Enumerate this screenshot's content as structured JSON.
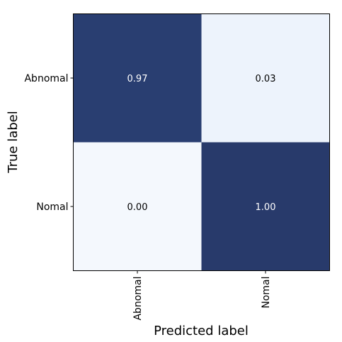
{
  "chart_data": {
    "type": "heatmap",
    "title": "",
    "xlabel": "Predicted label",
    "ylabel": "True label",
    "x_categories": [
      "Abnomal",
      "Nomal"
    ],
    "y_categories": [
      "Abnomal",
      "Nomal"
    ],
    "values": [
      [
        0.97,
        0.03
      ],
      [
        0.0,
        1.0
      ]
    ],
    "value_labels": [
      [
        "0.97",
        "0.03"
      ],
      [
        "0.00",
        "1.00"
      ]
    ],
    "colors": {
      "low": "#f4f8fd",
      "high": "#283a6b",
      "light_text": "#ffffff",
      "dark_text": "#000000"
    }
  }
}
